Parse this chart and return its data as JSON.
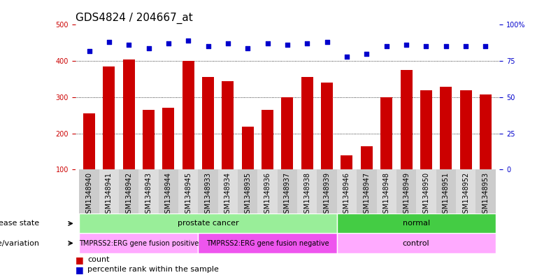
{
  "title": "GDS4824 / 204667_at",
  "samples": [
    "GSM1348940",
    "GSM1348941",
    "GSM1348942",
    "GSM1348943",
    "GSM1348944",
    "GSM1348945",
    "GSM1348933",
    "GSM1348934",
    "GSM1348935",
    "GSM1348936",
    "GSM1348937",
    "GSM1348938",
    "GSM1348939",
    "GSM1348946",
    "GSM1348947",
    "GSM1348948",
    "GSM1348949",
    "GSM1348950",
    "GSM1348951",
    "GSM1348952",
    "GSM1348953"
  ],
  "counts": [
    255,
    385,
    405,
    265,
    270,
    400,
    355,
    345,
    218,
    265,
    300,
    355,
    340,
    140,
    165,
    300,
    375,
    320,
    328,
    320,
    308
  ],
  "percentiles": [
    82,
    88,
    86,
    84,
    87,
    89,
    85,
    87,
    84,
    87,
    86,
    87,
    88,
    78,
    80,
    85,
    86,
    85,
    85,
    85,
    85
  ],
  "disease_state_groups": [
    {
      "label": "prostate cancer",
      "start": 0,
      "end": 13,
      "color": "#99EE99"
    },
    {
      "label": "normal",
      "start": 13,
      "end": 21,
      "color": "#44CC44"
    }
  ],
  "genotype_groups": [
    {
      "label": "TMPRSS2:ERG gene fusion positive",
      "start": 0,
      "end": 6,
      "color": "#FFAAFF"
    },
    {
      "label": "TMPRSS2:ERG gene fusion negative",
      "start": 6,
      "end": 13,
      "color": "#EE55EE"
    },
    {
      "label": "control",
      "start": 13,
      "end": 21,
      "color": "#FFAAFF"
    }
  ],
  "bar_color": "#CC0000",
  "dot_color": "#0000CC",
  "ylim_left": [
    100,
    500
  ],
  "ylim_right": [
    0,
    100
  ],
  "yticks_left": [
    100,
    200,
    300,
    400,
    500
  ],
  "yticks_right": [
    0,
    25,
    50,
    75,
    100
  ],
  "grid_values": [
    200,
    300,
    400
  ],
  "title_fontsize": 11,
  "tick_fontsize": 7,
  "label_fontsize": 8,
  "legend_fontsize": 8,
  "col_colors": [
    "#cccccc",
    "#dddddd"
  ]
}
